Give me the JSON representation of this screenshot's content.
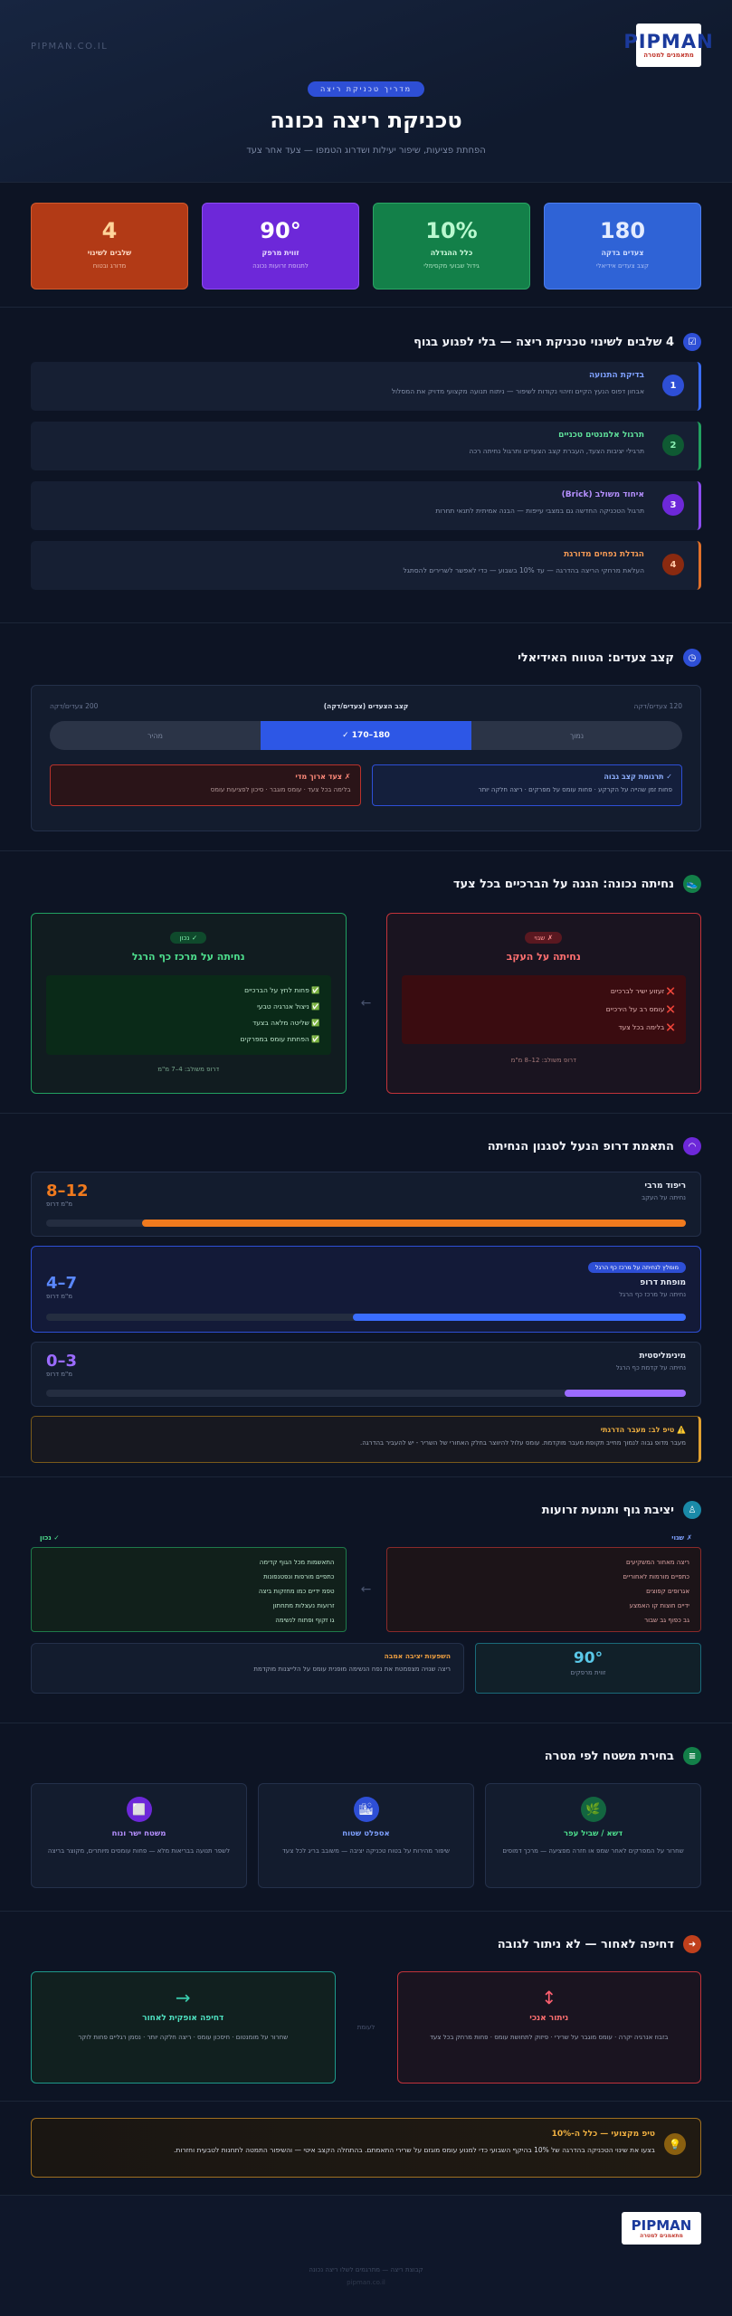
{
  "header": {
    "site": "PIPMAN.CO.IL",
    "logo_text": "PIPMAN",
    "logo_sub": "מתאמנים למטרה",
    "badge": "מדריך טכניקת ריצה",
    "title": "טכניקת ריצה נכונה",
    "subtitle": "הפחתת פציעות, שיפור יעילות ושדרוג הטמפו — צעד אחר צעד"
  },
  "stats": [
    {
      "value": "180",
      "label": "צעדים בדקה",
      "desc": "קצב צעדים אידיאלי"
    },
    {
      "value": "10%",
      "label": "כלל ההגדלה",
      "desc": "גידול שבועי מקסימלי"
    },
    {
      "value": "90°",
      "label": "זווית מרפק",
      "desc": "לתנופת זרועות נכונה"
    },
    {
      "value": "4",
      "label": "שלבים לשינוי",
      "desc": "מדורג ובטוח"
    }
  ],
  "steps": {
    "title": "4 שלבים לשינוי טכניקת ריצה — בלי לפגוע בגוף",
    "items": [
      {
        "num": "1",
        "title": "בדיקת התנועה",
        "desc": "אבחון דפוס הנעץ הקיים וזיהוי נקודות לשיפור — ניתוח תנועה מקצועי מדויק את המסלול"
      },
      {
        "num": "2",
        "title": "תרגול אלמנטים טכניים",
        "desc": "תרגילי יציבות הצעד, העברת קצב הצעדים ותרגול נחיתה רכה"
      },
      {
        "num": "3",
        "title": "איחוד משולב (Brick)",
        "desc": "תרגול הטכניקה החדשה גם במצבי עייפות — הבנה אמיתית לתנאי תחרות"
      },
      {
        "num": "4",
        "title": "הגדלת נפחים מדורגת",
        "desc": "העלאת מרחקי הריצה בהדרגה — עד 10% בשבוע — כדי לאפשר לשרירים להסתגל"
      }
    ]
  },
  "cadence": {
    "title": "קצב צעדים: הטווח האידיאלי",
    "bar_title": "קצב הצעדים (צעדים/דקה)",
    "min_label": "120 צעדים/דקה",
    "max_label": "200 צעדים/דקה",
    "zones": [
      "נמוך",
      "180–170 ✓",
      "מהיר"
    ],
    "good": {
      "title": "✓ תרגומת קצב גבוה",
      "desc": "פחות זמן שהייה על הקרקע · פחות עומס על מפרקים · ריצה חלקה יותר"
    },
    "bad": {
      "title": "✗ צעד ארוך מדי",
      "desc": "בלימה בכל צעד · עומס מוגבר · סיכון לפציעות עומס"
    }
  },
  "landing": {
    "title": "נחיתה נכונה: הגנה על הברכיים בכל צעד",
    "wrong": {
      "tag": "✗ שגוי",
      "title": "נחיתה על העקב",
      "items": [
        "❌ זעזוע ישיר לברכיים",
        "❌ עומס רב על הירכיים",
        "❌ בלימה בכל צעד"
      ],
      "foot": "דרופ משולב: 12–8 מ\"מ"
    },
    "right": {
      "tag": "✓ נכון",
      "title": "נחיתה על מרכז כף הרגל",
      "items": [
        "✅ פחות לחץ על הברכיים",
        "✅ ניצול אנרגיה טבעי",
        "✅ שליטה מלאה בצעד",
        "✅ הפחתת עומס במפרקים"
      ],
      "foot": "דרופ משולב: 4–7 מ\"מ"
    }
  },
  "drop": {
    "title": "התאמת דרופ הנעל לסגנון הנחיתה",
    "items": [
      {
        "name": "ריפוד מרבי",
        "desc": "נחיתה על העקב",
        "value": "12–8",
        "unit": "מ\"מ דרופ",
        "fill": 0.85,
        "color": "#f07a1e",
        "badge": ""
      },
      {
        "name": "מופחת דרופ",
        "desc": "נחיתה על מרכז כף הרגל",
        "value": "7–4",
        "unit": "מ\"מ דרופ",
        "fill": 0.52,
        "color": "#3a6dff",
        "badge": "מומלץ לנחיתה על מרכז כף הרגל"
      },
      {
        "name": "מינימליסטית",
        "desc": "נחיתה על קדמת כף הרגל",
        "value": "3–0",
        "unit": "מ\"מ דרופ",
        "fill": 0.19,
        "color": "#9b6bff",
        "badge": ""
      }
    ],
    "tip_title": "⚠️ טיפ לב: מעבר הדרגתי",
    "tip": "מעבר מדופ גבוה לנמוך מחייב תקופת מעבר מוקדמת. עומס עלול להיווצר בחלק האחורי של השריר - יש להעביר בהדרגה."
  },
  "posture": {
    "title": "יציבת גוף ותנועת זרועות",
    "wrong_tag": "✗ שגוי",
    "right_tag": "✓ נכון",
    "wrong": [
      "ריצה מאחור המשקיעים",
      "כתפיים מורמות לאחוריים",
      "אגרופים קפוצים",
      "ידיים חוצות קו האמצע",
      "גב כפוף גב שבור"
    ],
    "right": [
      "התאשמות מכל הגוף קדימה",
      "כתפיים מורפות ונפטנפונות",
      "טפמ ידיים כמו מחזקות ביצה",
      "זרועות נעצלות מתחתון",
      "גו זקוף ופתוח לנשימה"
    ],
    "angle": "90°",
    "angle_label": "זווית מרפקים",
    "tip_title": "השפעות יציבה אמבה",
    "tip": "ריצה שנויה מצפמטת את נפח הנשימה מופנית עומס על הלייצנות מוקדמת"
  },
  "terrain": {
    "title": "בחירת משטח לפי מטרה",
    "items": [
      {
        "title": "דשא / שביל עפר",
        "desc": "שחרור על המפרקים לאחר שמפ או חזרה מפציעה — מרכך דמוסים"
      },
      {
        "title": "אספלט שטוח",
        "desc": "שיפור מהירות על בטוח טכניקה יציבה — משובב בריג לכל צעד"
      },
      {
        "title": "משטח ישר ונוח",
        "desc": "לשפר תנועה בבריאות מלא — פחות עומסים מיותרים, מקוצר בריצה"
      }
    ]
  },
  "push": {
    "title": "דחיפה לאחור — לא ניתור לגובה",
    "wrong_title": "ניתור אנכי",
    "wrong_desc": "בזבוז אנרגיה יקרה · עומס מוגבר על שרירי · פיזוק לתחושת עומס · פחות מרחק בכל צעד",
    "middle": "לעומת",
    "right_title": "דחיפה אופקית לאחור",
    "right_desc": "שחרור על מומנטום · חיסכון עומס · ריצה חלקה יותר · נסמן רגליים פחות לוקר"
  },
  "tip": {
    "title": "טיפ מקצועי — כלל ה-10%",
    "text": "בצעו את שינוי הטכניקה בהדרגה של 10% בהיקף השבועי כדי למנוע עומס מוגזם על שרירי התאמתם. בהתחלה הקצב איטי — והשיפור התמטה לתחנות לטבעית וחזרות."
  },
  "footer": {
    "logo_text": "PIPMAN",
    "logo_sub": "מתאמנים למטרה",
    "text": "קבוצת ריצה — מתרגמים לשלו ריצה נכונה",
    "copy": "pipman.co.il"
  },
  "colors": {
    "blue": "#2f63d6",
    "green": "#138049",
    "purple": "#6d28d9",
    "orange": "#b23a16"
  }
}
